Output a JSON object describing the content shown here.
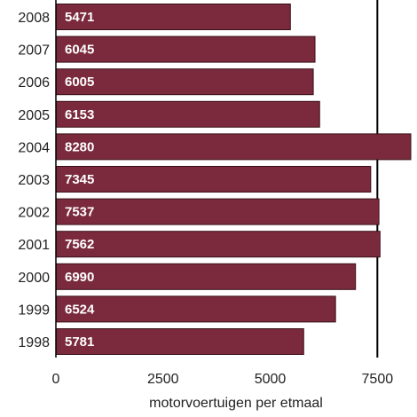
{
  "chart_data": {
    "type": "bar",
    "orientation": "horizontal",
    "categories": [
      "2008",
      "2007",
      "2006",
      "2005",
      "2004",
      "2003",
      "2002",
      "2001",
      "2000",
      "1999",
      "1998"
    ],
    "values": [
      5471,
      6045,
      6005,
      6153,
      8280,
      7345,
      7537,
      7562,
      6990,
      6524,
      5781
    ],
    "value_labels": [
      "5471",
      "6045",
      "6005",
      "6153",
      "8280",
      "7345",
      "7537",
      "7562",
      "6990",
      "6524",
      "5781"
    ],
    "xlabel": "motorvoertuigen per etmaal",
    "xlim": [
      0,
      8280
    ],
    "xticks": [
      0,
      2500,
      5000,
      7500
    ],
    "xtick_labels": [
      "0",
      "2500",
      "5000",
      "7500"
    ],
    "grid_vertical_at": [
      7500
    ],
    "colors": {
      "bar": "#7a2a3c",
      "bar_edge": "#3a0f18",
      "axis": "#000000"
    }
  }
}
